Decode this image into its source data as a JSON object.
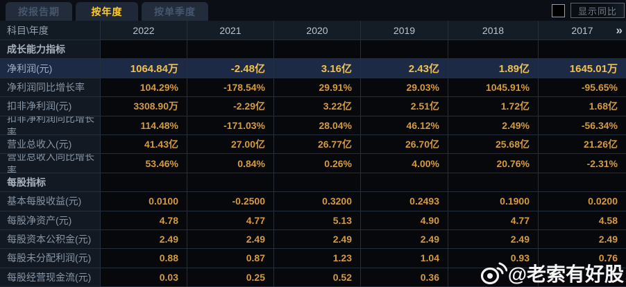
{
  "tabs": [
    {
      "label": "按报告期",
      "active": false
    },
    {
      "label": "按年度",
      "active": true
    },
    {
      "label": "按单季度",
      "active": false
    }
  ],
  "controls": {
    "show_yoy_label": "显示同比"
  },
  "table": {
    "corner_label": "科目\\年度",
    "years": [
      "2022",
      "2021",
      "2020",
      "2019",
      "2018",
      "2017"
    ],
    "more_icon": "»",
    "rows": [
      {
        "type": "section",
        "label": "成长能力指标"
      },
      {
        "type": "data",
        "highlight": true,
        "label": "净利润(元)",
        "values": [
          "1064.84万",
          "-2.48亿",
          "3.16亿",
          "2.43亿",
          "1.89亿",
          "1645.01万"
        ]
      },
      {
        "type": "data",
        "highlight": false,
        "label": "净利润同比增长率",
        "values": [
          "104.29%",
          "-178.54%",
          "29.91%",
          "29.03%",
          "1045.91%",
          "-95.65%"
        ]
      },
      {
        "type": "data",
        "highlight": false,
        "label": "扣非净利润(元)",
        "values": [
          "3308.90万",
          "-2.29亿",
          "3.22亿",
          "2.51亿",
          "1.72亿",
          "1.68亿"
        ]
      },
      {
        "type": "data",
        "highlight": false,
        "label": "扣非净利润同比增长率",
        "values": [
          "114.48%",
          "-171.03%",
          "28.04%",
          "46.12%",
          "2.49%",
          "-56.34%"
        ]
      },
      {
        "type": "data",
        "highlight": false,
        "label": "营业总收入(元)",
        "values": [
          "41.43亿",
          "27.00亿",
          "26.77亿",
          "26.70亿",
          "25.68亿",
          "21.26亿"
        ]
      },
      {
        "type": "data",
        "highlight": false,
        "label": "营业总收入同比增长率",
        "values": [
          "53.46%",
          "0.84%",
          "0.26%",
          "4.00%",
          "20.76%",
          "-2.31%"
        ]
      },
      {
        "type": "section",
        "label": "每股指标"
      },
      {
        "type": "data",
        "highlight": false,
        "label": "基本每股收益(元)",
        "values": [
          "0.0100",
          "-0.2500",
          "0.3200",
          "0.2493",
          "0.1900",
          "0.0200"
        ]
      },
      {
        "type": "data",
        "highlight": false,
        "label": "每股净资产(元)",
        "values": [
          "4.78",
          "4.77",
          "5.13",
          "4.90",
          "4.77",
          "4.58"
        ]
      },
      {
        "type": "data",
        "highlight": false,
        "label": "每股资本公积金(元)",
        "values": [
          "2.49",
          "2.49",
          "2.49",
          "2.49",
          "2.49",
          "2.49"
        ]
      },
      {
        "type": "data",
        "highlight": false,
        "label": "每股未分配利润(元)",
        "values": [
          "0.88",
          "0.87",
          "1.23",
          "1.04",
          "0.93",
          "0.76"
        ]
      },
      {
        "type": "data",
        "highlight": false,
        "label": "每股经营现金流(元)",
        "values": [
          "0.03",
          "0.25",
          "0.52",
          "0.36",
          "",
          ""
        ]
      }
    ]
  },
  "watermark": {
    "text": "@老索有好股"
  },
  "colors": {
    "accent_gold": "#ffca2e",
    "value_gold": "#d59b3e",
    "highlight_row_bg": "#1c2a46",
    "grid_line": "#242f3b",
    "header_bg": "#141c26"
  }
}
